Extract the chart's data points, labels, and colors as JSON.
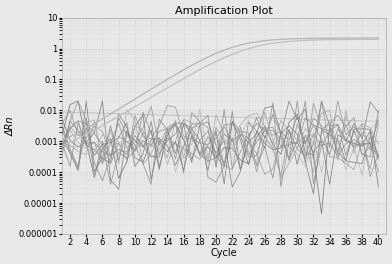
{
  "title": "Amplification Plot",
  "xlabel": "Cycle",
  "ylabel": "ΔRn",
  "xlim": [
    1,
    41
  ],
  "xticks": [
    2,
    4,
    6,
    8,
    10,
    12,
    14,
    16,
    18,
    20,
    22,
    24,
    26,
    28,
    30,
    32,
    34,
    36,
    38,
    40
  ],
  "ylim_log": [
    1e-06,
    10
  ],
  "yticks": [
    1e-06,
    1e-05,
    0.0001,
    0.001,
    0.01,
    0.1,
    1,
    10
  ],
  "ytick_labels": [
    "0.000001",
    "0.00001",
    "0.0001",
    "0.001",
    "0.01",
    "0.1",
    "1",
    "10"
  ],
  "background_color": "#e8e8e8",
  "plot_bg_color": "#e8e8e8",
  "grid_color": "#aaaaaa",
  "title_fontsize": 8,
  "axis_fontsize": 7,
  "tick_fontsize": 6
}
